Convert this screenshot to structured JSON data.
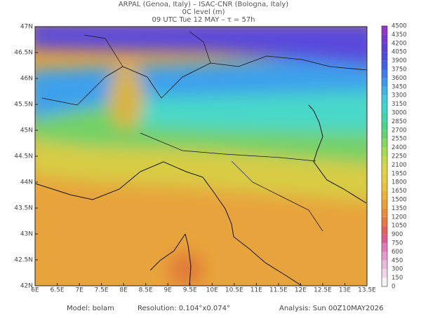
{
  "header": {
    "line1": "ARPAL (Genoa, Italy)  –  ISAC-CNR (Bologna, Italy)",
    "line2": "0C level (m)",
    "line3": "09 UTC Tue 12 MAY  –  τ = 57h"
  },
  "map": {
    "lat_labels": [
      "47N",
      "46.5N",
      "46N",
      "45.5N",
      "45N",
      "44.5N",
      "44N",
      "43.5N",
      "43N",
      "42.5N",
      "42N"
    ],
    "lon_labels": [
      "6E",
      "6.5E",
      "7E",
      "7.5E",
      "8E",
      "8.5E",
      "9E",
      "9.5E",
      "10E",
      "10.5E",
      "11E",
      "11.5E",
      "12E",
      "12.5E",
      "13E",
      "13.5E"
    ]
  },
  "colorbar": {
    "ticks": [
      0,
      150,
      300,
      450,
      600,
      750,
      900,
      1050,
      1200,
      1350,
      1500,
      1650,
      1800,
      1950,
      2100,
      2250,
      2400,
      2550,
      2700,
      2850,
      3000,
      3150,
      3300,
      3450,
      3600,
      3750,
      3900,
      4050,
      4200,
      4350,
      4500
    ],
    "colors": [
      "#f4f4f4",
      "#f0d6e4",
      "#eab8d8",
      "#e498cc",
      "#e07ab8",
      "#e05c8c",
      "#e4605a",
      "#e8783e",
      "#ea8c36",
      "#eca034",
      "#ecb036",
      "#eac03a",
      "#e6cc3e",
      "#dcd442",
      "#c8da48",
      "#a8dc50",
      "#84d85c",
      "#62d470",
      "#4ad48c",
      "#40d6ae",
      "#3cd8cc",
      "#3cccdc",
      "#3cb4e4",
      "#3c98ec",
      "#3c7cf0",
      "#4060ec",
      "#4c4ce0",
      "#6040d6",
      "#7a38d0",
      "#9434c8"
    ]
  },
  "footer": {
    "model": "Model: bolam",
    "resolution": "Resolution: 0.104°x0.074°",
    "analysis": "Analysis: Sun 00Z10MAY2026"
  }
}
